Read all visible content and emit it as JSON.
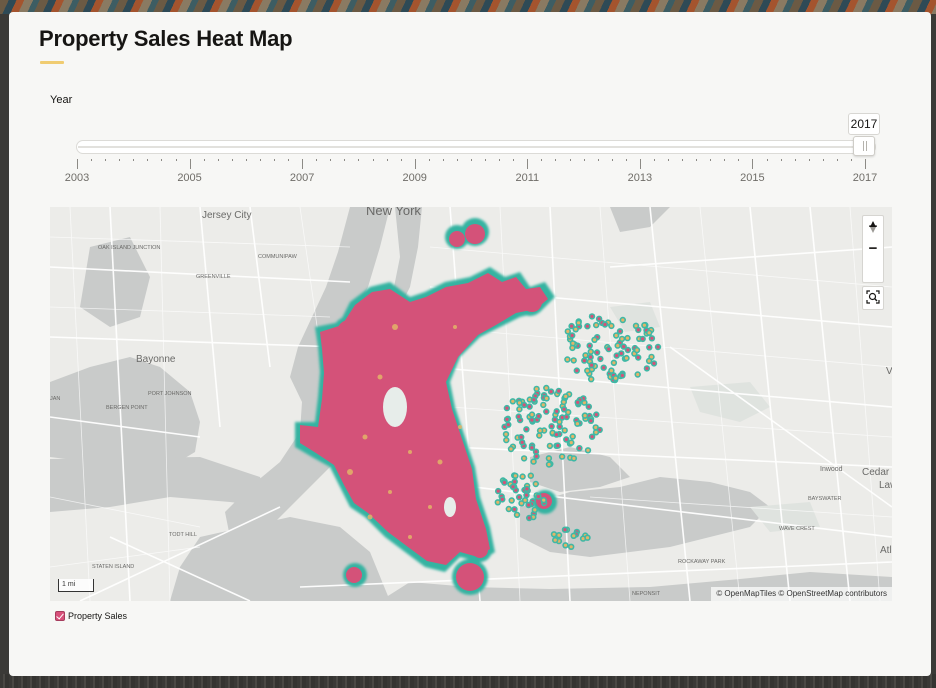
{
  "page": {
    "title": "Property Sales Heat Map",
    "accent_color": "#f0cc71"
  },
  "slider": {
    "label": "Year",
    "value": "2017",
    "min": 2003,
    "max": 2017,
    "major_labels": [
      "2003",
      "2005",
      "2007",
      "2009",
      "2011",
      "2013",
      "2015",
      "2017"
    ]
  },
  "map": {
    "place_labels": {
      "new_york": "New York",
      "jersey_city": "Jersey City",
      "oak_island_junction": "OAK ISLAND JUNCTION",
      "communipaw": "COMMUNIPAW",
      "greenville": "GREENVILLE",
      "bayonne": "Bayonne",
      "port_johnson": "PORT JOHNSON",
      "bergen_point": "BERGEN POINT",
      "staten_island": "STATEN ISLAND",
      "todt_hill": "TODT HILL",
      "inwood": "Inwood",
      "cedarhurst": "Cedar",
      "lawrence": "Law",
      "bayswater": "BAYSWATER",
      "wave_crest": "WAVE CREST",
      "rockaway_park": "ROCKAWAY PARK",
      "neponsit": "NEPONSIT",
      "atlantic": "Atl",
      "edge_left": "JAN",
      "edge_right": "V"
    },
    "controls": {
      "zoom_in": "+",
      "zoom_out": "−",
      "compass": "north-arrow-icon",
      "zoom_to": "zoom-extent-icon"
    },
    "scale": "1 mi",
    "attribution": "© OpenMapTiles  © OpenStreetMap contributors",
    "heat_colors": {
      "high": "#d45279",
      "mid": "#e3b468",
      "low": "#2fa898",
      "edge": "#3fb8a5"
    }
  },
  "legend": {
    "label": "Property Sales",
    "checked": true,
    "color": "#d8507a"
  }
}
